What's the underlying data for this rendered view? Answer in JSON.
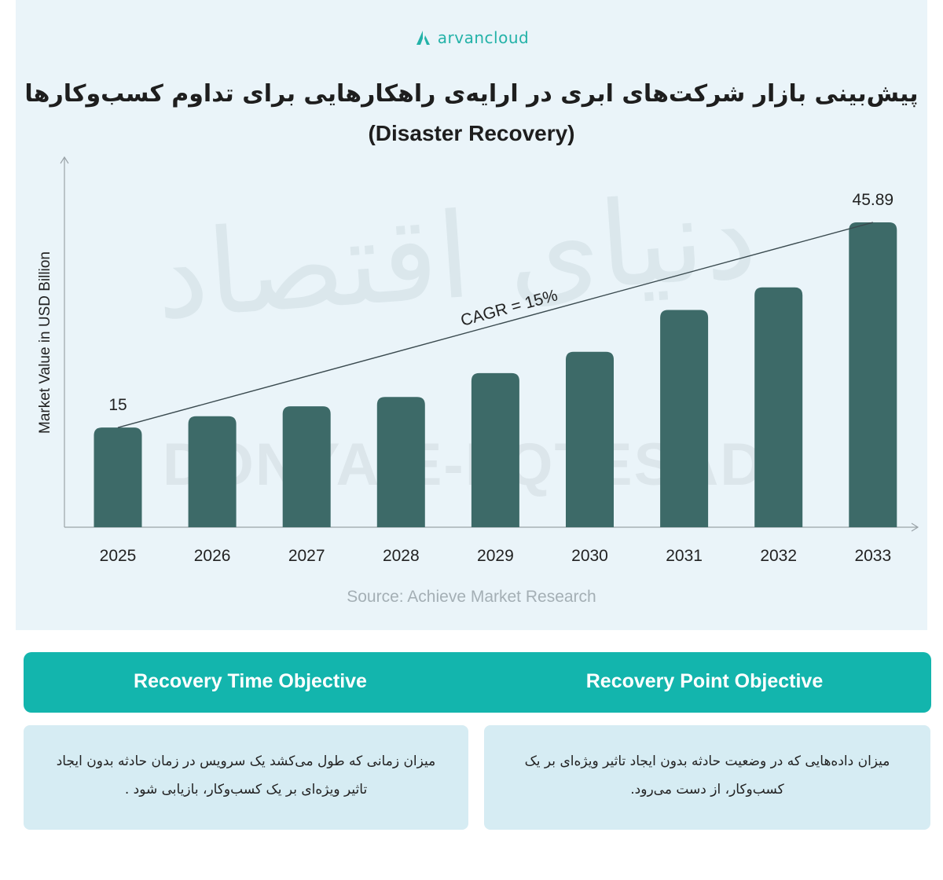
{
  "brand": {
    "name": "arvancloud"
  },
  "title": "پیش‌بینی بازار شرکت‌های ابری در ارایه‌ی راهکارهایی برای تداوم کسب‌وکارها",
  "subtitle": "(Disaster Recovery)",
  "watermark": {
    "fa": "دنیای اقتصاد",
    "en": "DONYA-E-EQTESAD"
  },
  "colors": {
    "bar": "#3d6a68",
    "axis": "#9aa3a8",
    "accent": "#13b5ad",
    "panel": "#eaf4f9",
    "card": "#d6ecf3"
  },
  "chart_data": {
    "type": "bar",
    "categories": [
      "2025",
      "2026",
      "2027",
      "2028",
      "2029",
      "2030",
      "2031",
      "2032",
      "2033"
    ],
    "values": [
      15,
      16.7,
      18.2,
      19.6,
      23.2,
      26.4,
      32.7,
      36.1,
      45.89
    ],
    "data_labels": [
      "15",
      "",
      "",
      "",
      "",
      "",
      "",
      "",
      "45.89"
    ],
    "ylabel": "Market Value in USD Billion",
    "xlabel": "",
    "ylim": [
      0,
      55
    ],
    "annotation": "CAGR = 15%",
    "trend_line": {
      "from": "2025",
      "to": "2033"
    },
    "grid": false
  },
  "source": "Source: Achieve Market Research",
  "objectives": {
    "left_title": "Recovery Time Objective",
    "right_title": "Recovery Point Objective",
    "left_text": "میزان زمانی که طول می‌کشد یک سرویس در زمان حادثه بدون ایجاد تاثیر ویژه‌ای بر یک کسب‌وکار، بازیابی شود .",
    "right_text": "میزان داده‌هایی که در وضعیت حادثه بدون ایجاد تاثیر ویژه‌ای بر یک کسب‌وکار، از دست می‌رود."
  }
}
